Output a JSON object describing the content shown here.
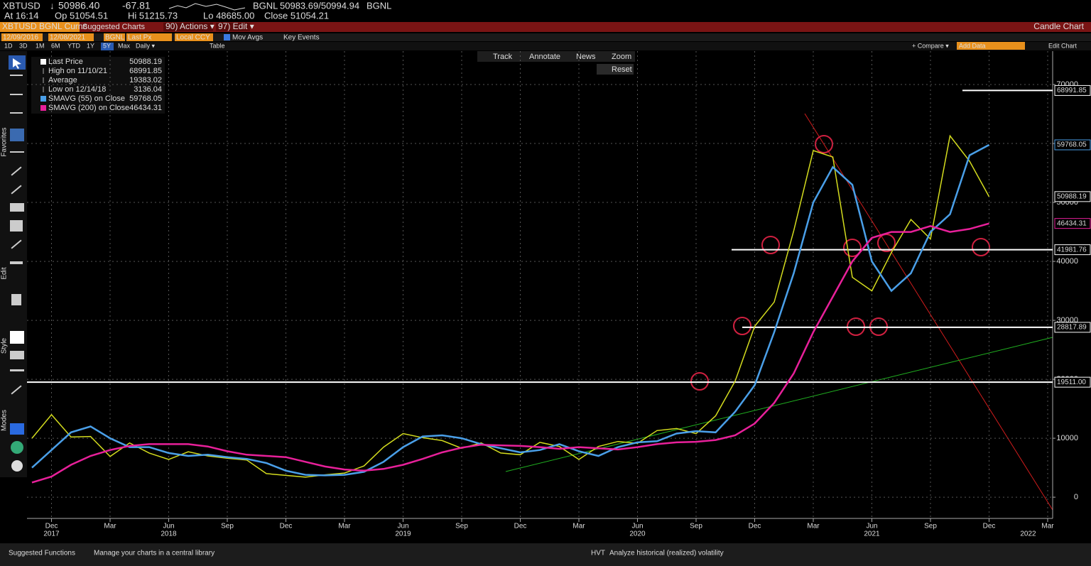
{
  "ui": {
    "ticker": {
      "symbol": "XBTUSD",
      "last": "50986.40",
      "change": "-67.81",
      "source": "BGNL",
      "bid_ask": "50983.69/50994.94",
      "source2": "BGNL"
    },
    "quote": [
      "At 16:14",
      "Op 51054.51",
      "Hi 51215.73",
      "Lo 48685.00",
      "Close 51054.21"
    ],
    "titlebar": {
      "security": "XBTUSD BGNL Curnc",
      "suggested": "Suggested Charts",
      "actions": "90) Actions ▾",
      "edit": "97) Edit ▾",
      "chart_type": "Candle Chart"
    },
    "settings": [
      "12/09/2016",
      "12/08/2021",
      "BGNL",
      "Last Px",
      "Local CCY",
      "Mov Avgs",
      "Key Events"
    ],
    "periods": [
      "1D",
      "3D",
      "1M",
      "6M",
      "YTD",
      "1Y",
      "5Y",
      "Max",
      "Daily ▾",
      "Table"
    ],
    "right_tools": [
      "+ Compare ▾",
      "Add Data",
      "Edit Chart"
    ],
    "chart_tools": [
      "Track",
      "Annotate",
      "News",
      "Zoom",
      "Reset"
    ],
    "side_labels": [
      "Favorites",
      "Edit",
      "Style",
      "Modes"
    ],
    "footer": [
      "Suggested Functions",
      "Manage your charts in a central library",
      "HVT",
      "Analyze historical (realized) volatility"
    ]
  },
  "chart_data": {
    "type": "line",
    "categories": [
      "2017-11",
      "2017-12",
      "2018-01",
      "2018-02",
      "2018-03",
      "2018-04",
      "2018-05",
      "2018-06",
      "2018-07",
      "2018-08",
      "2018-09",
      "2018-10",
      "2018-11",
      "2018-12",
      "2019-01",
      "2019-02",
      "2019-03",
      "2019-04",
      "2019-05",
      "2019-06",
      "2019-07",
      "2019-08",
      "2019-09",
      "2019-10",
      "2019-11",
      "2019-12",
      "2020-01",
      "2020-02",
      "2020-03",
      "2020-04",
      "2020-05",
      "2020-06",
      "2020-07",
      "2020-08",
      "2020-09",
      "2020-10",
      "2020-11",
      "2020-12",
      "2021-01",
      "2021-02",
      "2021-03",
      "2021-04",
      "2021-05",
      "2021-06",
      "2021-07",
      "2021-08",
      "2021-09",
      "2021-10",
      "2021-11",
      "2021-12",
      "2022-01",
      "2022-02",
      "2022-03"
    ],
    "series": [
      {
        "name": "Last Price",
        "color": "#d4dc1e",
        "values": [
          10000,
          14000,
          10200,
          10300,
          6900,
          9200,
          7500,
          6400,
          7700,
          7000,
          6600,
          6300,
          4000,
          3700,
          3400,
          3800,
          4100,
          5300,
          8500,
          10800,
          10100,
          9600,
          8300,
          9200,
          7500,
          7200,
          9300,
          8600,
          6400,
          8600,
          9450,
          9150,
          11300,
          11650,
          10780,
          13800,
          19700,
          29000,
          33100,
          45200,
          58800,
          57700,
          37300,
          35000,
          41500,
          47100,
          43800,
          61300,
          57000,
          50988.19,
          null,
          null,
          null
        ]
      },
      {
        "name": "SMAVG (55) on Close",
        "color": "#4a9fe8",
        "values": [
          5000,
          8000,
          11000,
          12000,
          10000,
          8500,
          8500,
          7500,
          7000,
          7200,
          6800,
          6500,
          5800,
          4500,
          3800,
          3700,
          3800,
          4300,
          6000,
          8500,
          10300,
          10500,
          10000,
          9000,
          8300,
          7600,
          8000,
          9000,
          7800,
          7000,
          8500,
          9300,
          9500,
          10800,
          11200,
          11000,
          14500,
          19000,
          28000,
          38000,
          50000,
          56000,
          53000,
          40000,
          35000,
          38000,
          45000,
          48000,
          58000,
          59768.05,
          null,
          null,
          null
        ]
      },
      {
        "name": "SMAVG (200) on Close",
        "color": "#e8209a",
        "values": [
          2500,
          3500,
          5500,
          7000,
          8000,
          8700,
          9000,
          9000,
          9000,
          8600,
          7800,
          7200,
          7000,
          6800,
          6000,
          5200,
          4700,
          4500,
          4800,
          5500,
          6500,
          7600,
          8400,
          8900,
          8800,
          8700,
          8500,
          8200,
          8500,
          8300,
          8100,
          8500,
          9000,
          9300,
          9400,
          9700,
          10500,
          12500,
          16000,
          21000,
          28000,
          34000,
          40000,
          44000,
          45000,
          45000,
          46000,
          45000,
          45500,
          46434.31,
          null,
          null,
          null
        ]
      }
    ],
    "stats": [
      {
        "label": "High on 11/10/21",
        "value": 68991.85
      },
      {
        "label": "Average",
        "value": 19383.02
      },
      {
        "label": "Low on 12/14/18",
        "value": 3136.04
      }
    ],
    "levels": [
      68991.85,
      41981.76,
      28817.89,
      {
        "value": 19511,
        "label": "19511.00"
      }
    ],
    "ylim": [
      -3600,
      74100
    ],
    "yticks": [
      0,
      10000,
      20000,
      30000,
      40000,
      50000,
      60000,
      70000
    ],
    "xticks": [
      {
        "value": "2017-12",
        "label": "Dec"
      },
      {
        "value": "2018-03",
        "label": "Mar"
      },
      {
        "value": "2018-06",
        "label": "Jun"
      },
      {
        "value": "2018-09",
        "label": "Sep"
      },
      {
        "value": "2018-12",
        "label": "Dec"
      },
      {
        "value": "2019-03",
        "label": "Mar"
      },
      {
        "value": "2019-06",
        "label": "Jun"
      },
      {
        "value": "2019-09",
        "label": "Sep"
      },
      {
        "value": "2019-12",
        "label": "Dec"
      },
      {
        "value": "2020-03",
        "label": "Mar"
      },
      {
        "value": "2020-06",
        "label": "Jun"
      },
      {
        "value": "2020-09",
        "label": "Sep"
      },
      {
        "value": "2020-12",
        "label": "Dec"
      },
      {
        "value": "2021-03",
        "label": "Mar"
      },
      {
        "value": "2021-06",
        "label": "Jun"
      },
      {
        "value": "2021-09",
        "label": "Sep"
      },
      {
        "value": "2021-12",
        "label": "Dec"
      },
      {
        "value": "2022-03",
        "label": "Mar"
      }
    ],
    "year_labels": [
      {
        "value": "2017-12",
        "label": "2017"
      },
      {
        "value": "2018-06",
        "label": "2018"
      },
      {
        "value": "2019-06",
        "label": "2019"
      },
      {
        "value": "2020-06",
        "label": "2020"
      },
      {
        "value": "2021-06",
        "label": "2021"
      },
      {
        "value": "2022-02",
        "label": "2022"
      }
    ],
    "grid": true
  }
}
